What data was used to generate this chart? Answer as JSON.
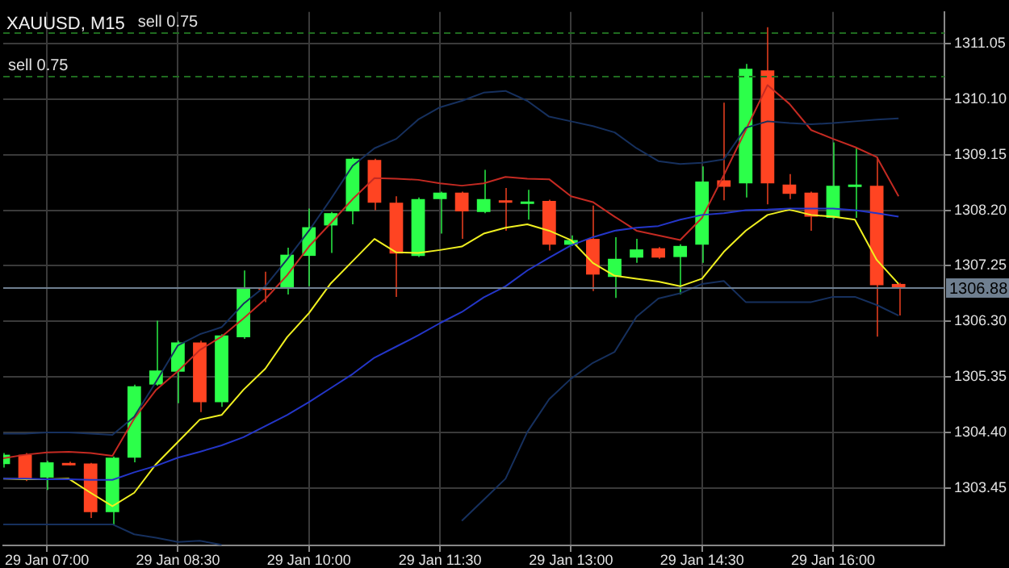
{
  "chart_data": {
    "type": "candlestick",
    "title": "XAUUSD, M15",
    "categories": [
      null,
      null,
      "29 Jan 07:00",
      null,
      null,
      null,
      null,
      null,
      "29 Jan 08:30",
      null,
      null,
      null,
      null,
      null,
      "29 Jan 10:00",
      null,
      null,
      null,
      null,
      null,
      "29 Jan 11:30",
      null,
      null,
      null,
      null,
      null,
      "29 Jan 13:00",
      null,
      null,
      null,
      null,
      null,
      "29 Jan 14:30",
      null,
      null,
      null,
      null,
      null,
      "29 Jan 16:00",
      null,
      null,
      null
    ],
    "ohlc": [
      [
        1303.86,
        1304.05,
        1303.8,
        1304.02
      ],
      [
        1304.02,
        1304.05,
        1303.57,
        1303.61
      ],
      [
        1303.63,
        1303.92,
        1303.42,
        1303.89
      ],
      [
        1303.88,
        1303.9,
        1303.84,
        1303.86
      ],
      [
        1303.87,
        1303.88,
        1302.94,
        1303.04
      ],
      [
        1303.04,
        1303.99,
        1302.83,
        1303.97
      ],
      [
        1303.97,
        1305.22,
        1303.89,
        1305.19
      ],
      [
        1305.22,
        1306.31,
        1305.2,
        1305.46
      ],
      [
        1305.44,
        1305.97,
        1304.9,
        1305.94
      ],
      [
        1305.94,
        1305.97,
        1304.75,
        1304.92
      ],
      [
        1304.92,
        1306.08,
        1304.84,
        1306.06
      ],
      [
        1306.03,
        1307.17,
        1306,
        1306.88
      ],
      [
        1306.88,
        1307.15,
        1306.63,
        1306.87
      ],
      [
        1306.88,
        1307.56,
        1306.76,
        1307.44
      ],
      [
        1307.42,
        1308.23,
        1306.9,
        1307.91
      ],
      [
        1307.94,
        1308.17,
        1307.47,
        1308.15
      ],
      [
        1308.18,
        1309.1,
        1307.96,
        1309.08
      ],
      [
        1309.06,
        1309.08,
        1308.2,
        1308.33
      ],
      [
        1308.33,
        1308.44,
        1306.72,
        1307.46
      ],
      [
        1307.42,
        1308.42,
        1307.4,
        1308.39
      ],
      [
        1308.39,
        1308.52,
        1307.8,
        1308.5
      ],
      [
        1308.5,
        1308.52,
        1307.71,
        1308.18
      ],
      [
        1308.17,
        1308.89,
        1308.15,
        1308.39
      ],
      [
        1308.37,
        1308.58,
        1307.85,
        1308.35
      ],
      [
        1308.33,
        1308.55,
        1308.04,
        1308.35
      ],
      [
        1308.36,
        1308.38,
        1307.51,
        1307.61
      ],
      [
        1307.61,
        1307.77,
        1307.59,
        1307.69
      ],
      [
        1307.71,
        1308.28,
        1306.82,
        1307.1
      ],
      [
        1307.06,
        1307.74,
        1306.7,
        1307.37
      ],
      [
        1307.39,
        1307.71,
        1307.3,
        1307.53
      ],
      [
        1307.55,
        1307.57,
        1307.37,
        1307.39
      ],
      [
        1307.4,
        1307.62,
        1306.76,
        1307.59
      ],
      [
        1307.61,
        1308.95,
        1307.3,
        1308.69
      ],
      [
        1308.71,
        1310.04,
        1308.37,
        1308.6
      ],
      [
        1308.66,
        1310.7,
        1308.42,
        1310.62
      ],
      [
        1310.59,
        1311.33,
        1308.3,
        1308.66
      ],
      [
        1308.64,
        1308.82,
        1308.39,
        1308.48
      ],
      [
        1308.5,
        1308.52,
        1307.85,
        1308.09
      ],
      [
        1308.07,
        1309.36,
        1308.05,
        1308.62
      ],
      [
        1308.62,
        1309.27,
        1308.07,
        1308.64
      ],
      [
        1308.62,
        1309.11,
        1306.04,
        1306.92
      ],
      [
        1306.94,
        1306.96,
        1306.4,
        1306.88
      ]
    ],
    "colors": [
      "#2cff4a",
      "#ff4422",
      "#2cff4a",
      "#ff4422",
      "#ff4422",
      "#2cff4a",
      "#2cff4a",
      "#2cff4a",
      "#2cff4a",
      "#ff4422",
      "#2cff4a",
      "#2cff4a",
      "#ff4422",
      "#2cff4a",
      "#2cff4a",
      "#2cff4a",
      "#2cff4a",
      "#ff4422",
      "#ff4422",
      "#2cff4a",
      "#2cff4a",
      "#ff4422",
      "#2cff4a",
      "#ff4422",
      "#2cff4a",
      "#ff4422",
      "#2cff4a",
      "#ff4422",
      "#2cff4a",
      "#2cff4a",
      "#ff4422",
      "#2cff4a",
      "#2cff4a",
      "#ff4422",
      "#2cff4a",
      "#ff4422",
      "#ff4422",
      "#ff4422",
      "#2cff4a",
      "#2cff4a",
      "#ff4422",
      "#ff4422"
    ],
    "series": [
      {
        "type": "line",
        "color": "#16305e",
        "values": [
          1304.38,
          1304.38,
          1304.4,
          1304.4,
          1304.38,
          1304.36,
          1304.67,
          1305.27,
          1305.89,
          1306.08,
          1306.2,
          1306.6,
          1306.9,
          1307.36,
          1307.85,
          1308.39,
          1308.96,
          1309.26,
          1309.42,
          1309.75,
          1309.96,
          1310.07,
          1310.21,
          1310.24,
          1310.07,
          1309.8,
          1309.72,
          1309.64,
          1309.53,
          1309.26,
          1309.04,
          1308.99,
          1309.01,
          1309.07,
          1309.61,
          1309.72,
          1309.69,
          1309.67,
          1309.69,
          1309.72,
          1309.75,
          1309.77
        ]
      },
      {
        "type": "line",
        "color": "#16305e",
        "values": [
          1302.83,
          1302.83,
          1302.83,
          1302.83,
          1302.83,
          1302.83,
          1302.66,
          1302.6,
          1302.53,
          1302.55,
          1302.48,
          null,
          null,
          null,
          null,
          null,
          null,
          null,
          null,
          null,
          null,
          1302.89,
          1303.25,
          1303.61,
          1304.41,
          1304.97,
          1305.32,
          1305.59,
          1305.78,
          1306.38,
          1306.69,
          1306.78,
          1306.94,
          1306.99,
          1306.63,
          1306.63,
          1306.63,
          1306.63,
          1306.72,
          1306.72,
          1306.58,
          1306.4
        ]
      },
      {
        "type": "line",
        "color": "#2436c8",
        "values": [
          1303.61,
          1303.61,
          1303.6,
          1303.6,
          1303.59,
          1303.59,
          1303.72,
          1303.83,
          1303.97,
          1304.07,
          1304.18,
          1304.32,
          1304.51,
          1304.7,
          1304.92,
          1305.16,
          1305.4,
          1305.68,
          1305.87,
          1306.06,
          1306.27,
          1306.46,
          1306.71,
          1306.9,
          1307.17,
          1307.39,
          1307.6,
          1307.74,
          1307.85,
          1307.9,
          1307.93,
          1308.04,
          1308.12,
          1308.15,
          1308.2,
          1308.21,
          1308.23,
          1308.23,
          1308.23,
          1308.2,
          1308.15,
          1308.09
        ]
      },
      {
        "type": "line",
        "color": "#c42a22",
        "values": [
          1303.96,
          1304.02,
          1304.06,
          1304.07,
          1304.05,
          1304,
          1304.64,
          1305.13,
          1305.45,
          1305.81,
          1306.04,
          1306.35,
          1306.68,
          1307.09,
          1307.58,
          1307.98,
          1308.39,
          1308.75,
          1308.74,
          1308.72,
          1308.66,
          1308.62,
          1308.66,
          1308.77,
          1308.74,
          1308.73,
          1308.44,
          1308.34,
          1308.09,
          1307.85,
          1307.77,
          1307.69,
          1308.07,
          1308.8,
          1309.57,
          1310.34,
          1310.02,
          1309.57,
          1309.42,
          1309.28,
          1309.11,
          1308.44
        ]
      },
      {
        "type": "line",
        "color": "#f0f020",
        "values": [
          1303.61,
          1303.6,
          1303.6,
          1303.61,
          1303.37,
          1303.14,
          1303.37,
          1303.86,
          1304.24,
          1304.62,
          1304.7,
          1305.13,
          1305.49,
          1306.03,
          1306.44,
          1306.95,
          1307.33,
          1307.71,
          1307.48,
          1307.47,
          1307.52,
          1307.58,
          1307.8,
          1307.9,
          1307.96,
          1307.85,
          1307.69,
          1307.3,
          1307.08,
          1307.03,
          1306.98,
          1306.9,
          1307.03,
          1307.49,
          1307.85,
          1308.12,
          1308.21,
          1308.12,
          1308.09,
          1308.04,
          1307.35,
          1306.94
        ]
      }
    ],
    "ylim": [
      1302.47,
      1311.59
    ],
    "yticks": [
      1303.45,
      {
        "value": 1304.4,
        "label": "1304.40"
      },
      1305.35,
      {
        "value": 1306.3,
        "label": "1306.30"
      },
      1307.25,
      {
        "value": 1308.2,
        "label": "1308.20"
      },
      1309.15,
      {
        "value": 1310.1,
        "label": "1310.10"
      },
      1311.05
    ],
    "ref_lines": [
      {
        "axis": "y",
        "value": 1306.88,
        "label": "1306.88",
        "color": "#6f7f90",
        "line_style": "solid"
      },
      {
        "axis": "y",
        "value": 1311.23,
        "label": "sell 0.75",
        "color": "#1f6b1f",
        "line_style": "dashed"
      },
      {
        "axis": "y",
        "value": 1310.5,
        "label": "sell 0.75",
        "color": "#1f6b1f",
        "line_style": "dashed"
      }
    ],
    "grid": true,
    "legend": false
  }
}
